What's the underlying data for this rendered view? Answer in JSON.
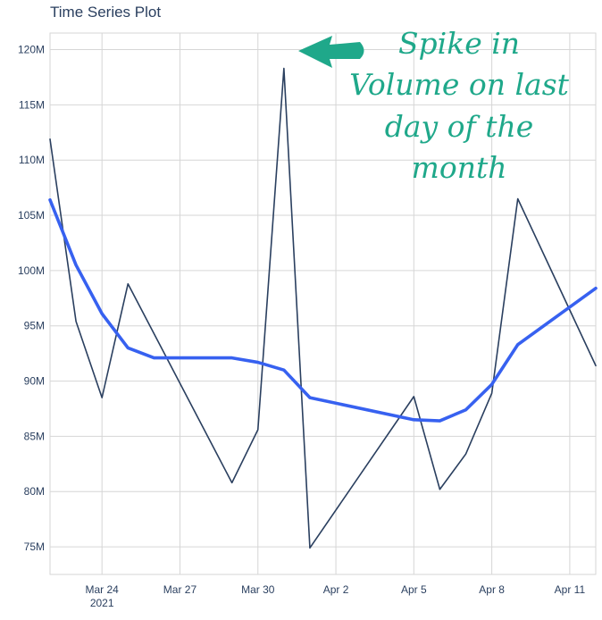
{
  "chart_data": {
    "type": "line",
    "title": "Time Series Plot",
    "xlabel": "",
    "ylabel": "",
    "x": [
      "2021-03-22",
      "2021-03-23",
      "2021-03-24",
      "2021-03-25",
      "2021-03-26",
      "2021-03-29",
      "2021-03-30",
      "2021-03-31",
      "2021-04-01",
      "2021-04-05",
      "2021-04-06",
      "2021-04-07",
      "2021-04-08",
      "2021-04-09",
      "2021-04-12"
    ],
    "xlim": [
      "2021-03-22",
      "2021-04-12"
    ],
    "ylim": [
      72.5,
      121.5
    ],
    "x_ticks": [
      {
        "date": "2021-03-24",
        "label": "Mar 24",
        "sublabel": "2021"
      },
      {
        "date": "2021-03-27",
        "label": "Mar 27"
      },
      {
        "date": "2021-03-30",
        "label": "Mar 30"
      },
      {
        "date": "2021-04-02",
        "label": "Apr 2"
      },
      {
        "date": "2021-04-05",
        "label": "Apr 5"
      },
      {
        "date": "2021-04-08",
        "label": "Apr 8"
      },
      {
        "date": "2021-04-11",
        "label": "Apr 11"
      }
    ],
    "y_ticks": [
      {
        "value": 75,
        "label": "75M"
      },
      {
        "value": 80,
        "label": "80M"
      },
      {
        "value": 85,
        "label": "85M"
      },
      {
        "value": 90,
        "label": "90M"
      },
      {
        "value": 95,
        "label": "95M"
      },
      {
        "value": 100,
        "label": "100M"
      },
      {
        "value": 105,
        "label": "105M"
      },
      {
        "value": 110,
        "label": "110M"
      },
      {
        "value": 115,
        "label": "115M"
      },
      {
        "value": 120,
        "label": "120M"
      }
    ],
    "series": [
      {
        "color": "#2a3f5f",
        "x": [
          "2021-03-22",
          "2021-03-23",
          "2021-03-24",
          "2021-03-25",
          "2021-03-29",
          "2021-03-30",
          "2021-03-31",
          "2021-04-01",
          "2021-04-05",
          "2021-04-06",
          "2021-04-07",
          "2021-04-08",
          "2021-04-09",
          "2021-04-12"
        ],
        "values": [
          111.9,
          95.4,
          88.5,
          98.8,
          80.8,
          85.6,
          118.3,
          74.9,
          88.6,
          80.2,
          83.4,
          88.9,
          106.5,
          91.4
        ]
      },
      {
        "color": "#3761f0",
        "x": [
          "2021-03-22",
          "2021-03-23",
          "2021-03-24",
          "2021-03-25",
          "2021-03-26",
          "2021-03-29",
          "2021-03-30",
          "2021-03-31",
          "2021-04-01",
          "2021-04-05",
          "2021-04-06",
          "2021-04-07",
          "2021-04-08",
          "2021-04-09",
          "2021-04-12"
        ],
        "values": [
          106.4,
          100.5,
          96.1,
          93.0,
          92.1,
          92.1,
          91.7,
          91.0,
          88.5,
          86.5,
          86.4,
          87.4,
          89.7,
          93.3,
          98.4
        ]
      }
    ],
    "grid": true,
    "annotation": {
      "lines": [
        "Spike in",
        "Volume on last",
        "day of the",
        "month"
      ],
      "arrow_color": "#1fa88a"
    }
  }
}
